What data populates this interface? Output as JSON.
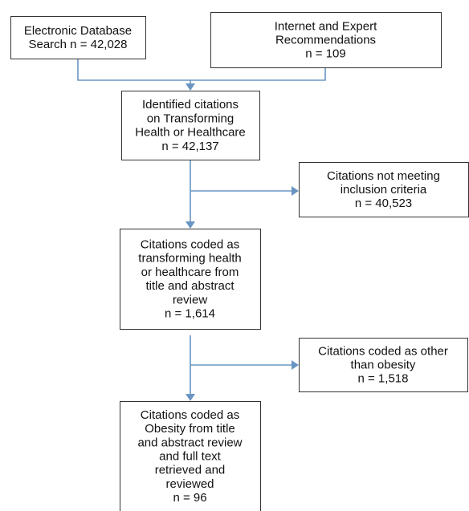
{
  "nodes": [
    {
      "lines": [
        "Electronic Database",
        "Search n = 42,028"
      ]
    },
    {
      "lines": [
        "Internet and Expert",
        "Recommendations",
        "n = 109"
      ]
    },
    {
      "lines": [
        "Identified citations",
        "on Transforming",
        "Health or Healthcare",
        "n = 42,137"
      ]
    },
    {
      "lines": [
        "Citations not meeting",
        "inclusion criteria",
        "n = 40,523"
      ]
    },
    {
      "lines": [
        "Citations coded as",
        "transforming health",
        "or healthcare from",
        "title and abstract",
        "review",
        "n = 1,614"
      ]
    },
    {
      "lines": [
        "Citations coded as other",
        "than obesity",
        "n = 1,518"
      ]
    },
    {
      "lines": [
        "Citations coded as",
        "Obesity from title",
        "and abstract review",
        "and full text",
        "retrieved and",
        "reviewed",
        "n = 96"
      ]
    }
  ]
}
